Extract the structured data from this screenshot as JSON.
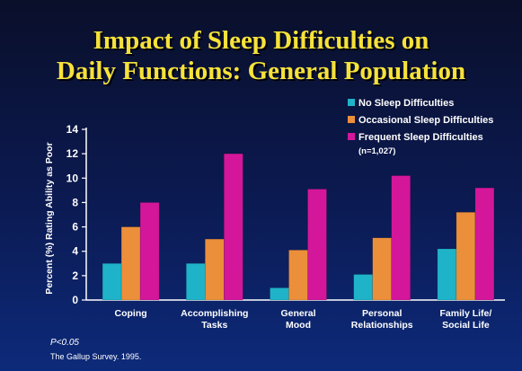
{
  "colors": {
    "background": "#0b1a52",
    "title": "#f6e23a",
    "series": [
      "#1fb3c9",
      "#ec8f3b",
      "#d4179a"
    ]
  },
  "slide": {
    "title_line1": "Impact of Sleep Difficulties on",
    "title_line2": "Daily Functions: General Population",
    "p_value": "P<0.05",
    "source": "The Gallup Survey. 1995."
  },
  "chart_data": {
    "type": "bar",
    "title": "Impact of Sleep Difficulties on Daily Functions: General Population",
    "ylabel": "Percent (%) Rating Ability as Poor",
    "xlabel": "",
    "ylim": [
      0,
      14
    ],
    "yticks": [
      0,
      2,
      4,
      6,
      8,
      10,
      12,
      14
    ],
    "grid": false,
    "legend_position": "top-right",
    "legend_note": "(n=1,027)",
    "categories": [
      [
        "Coping"
      ],
      [
        "Accomplishing",
        "Tasks"
      ],
      [
        "General",
        "Mood"
      ],
      [
        "Personal",
        "Relationships"
      ],
      [
        "Family Life/",
        "Social Life"
      ]
    ],
    "series": [
      {
        "name": "No Sleep Difficulties",
        "values": [
          3.0,
          3.0,
          1.0,
          2.1,
          4.2
        ]
      },
      {
        "name": "Occasional Sleep Difficulties",
        "values": [
          6.0,
          5.0,
          4.1,
          5.1,
          7.2
        ]
      },
      {
        "name": "Frequent Sleep Difficulties",
        "values": [
          8.0,
          12.0,
          9.1,
          10.2,
          9.2
        ]
      }
    ]
  }
}
